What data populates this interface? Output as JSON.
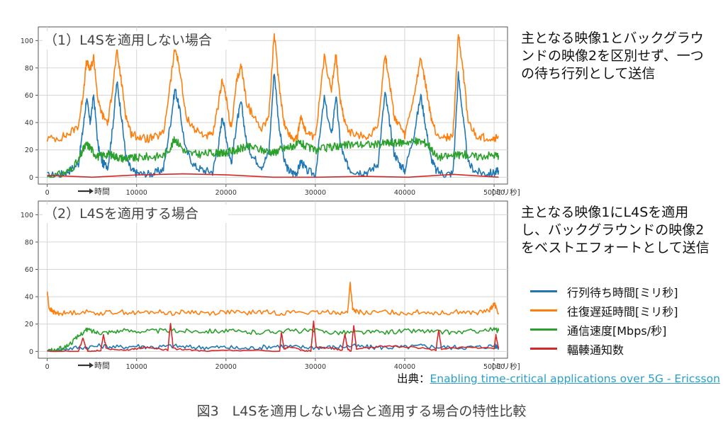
{
  "charts": [
    {
      "panel_title": "（1）L4Sを適用しない場合",
      "side_text": "主となる映像1とバックグラウンドの映像2を区別せず、一つの待ち行列として送信",
      "x_suffix": "[ミリ秒]",
      "x_note": "時間"
    },
    {
      "panel_title": "（2）L4Sを適用する場合",
      "side_text": "主となる映像1にL4Sを適用し、バックグラウンドの映像2をベストエフォートとして送信",
      "x_suffix": "[ミリ秒]",
      "x_note": "時間"
    }
  ],
  "legend": [
    {
      "label": "行列待ち時間[ミリ秒]",
      "color": "#1f77b4"
    },
    {
      "label": "往復遅延時間[ミリ秒]",
      "color": "#ff7f0e"
    },
    {
      "label": "通信速度[Mbps/秒]",
      "color": "#2ca02c"
    },
    {
      "label": "輻輳通知数",
      "color": "#d62728"
    }
  ],
  "source": {
    "prefix": "出典：",
    "link_text": "Enabling time-critical applications over 5G - Ericsson"
  },
  "caption": "図3　L4Sを適用しない場合と適用する場合の特性比較",
  "chart_data": [
    {
      "type": "line",
      "xlim": [
        -1000,
        51500
      ],
      "ylim": [
        -5,
        110
      ],
      "xticks": [
        0,
        10000,
        20000,
        30000,
        40000,
        50000
      ],
      "xtick_labels": [
        "0",
        "10000",
        "20000",
        "30000",
        "40000",
        "50000"
      ],
      "yticks": [
        0,
        20,
        40,
        60,
        80,
        100
      ],
      "ytick_labels": [
        "0",
        "20",
        "40",
        "60",
        "80",
        "100"
      ],
      "grid": true,
      "series": [
        {
          "name": "往復遅延時間[ミリ秒]",
          "color": "#ff7f0e",
          "x": [
            0,
            1500,
            2500,
            3500,
            4000,
            4400,
            4800,
            5200,
            5700,
            6200,
            6800,
            7300,
            7800,
            8300,
            8800,
            9400,
            10000,
            11000,
            12000,
            13000,
            13800,
            14300,
            14800,
            15500,
            16500,
            17500,
            18500,
            19200,
            19600,
            20000,
            20600,
            21200,
            21700,
            22300,
            23000,
            24000,
            24800,
            25400,
            25900,
            26500,
            27000,
            27500,
            28000,
            28400,
            29000,
            30000,
            31000,
            31800,
            32300,
            32800,
            33300,
            34000,
            35000,
            36000,
            37000,
            37800,
            38300,
            38800,
            39400,
            40000,
            41000,
            41800,
            42400,
            42900,
            43500,
            44500,
            45400,
            46000,
            46500,
            47100,
            48000,
            49000,
            50000,
            50500
          ],
          "y": [
            28,
            29,
            32,
            38,
            60,
            85,
            78,
            88,
            55,
            45,
            40,
            65,
            92,
            70,
            45,
            32,
            30,
            28,
            29,
            32,
            70,
            95,
            80,
            45,
            35,
            31,
            30,
            55,
            72,
            58,
            35,
            70,
            82,
            55,
            45,
            36,
            45,
            105,
            70,
            40,
            32,
            28,
            30,
            45,
            32,
            28,
            88,
            65,
            90,
            55,
            40,
            32,
            30,
            30,
            38,
            90,
            70,
            45,
            38,
            30,
            58,
            87,
            65,
            45,
            32,
            29,
            30,
            105,
            80,
            40,
            30,
            29,
            28,
            30
          ]
        },
        {
          "name": "行列待ち時間[ミリ秒]",
          "color": "#1f77b4",
          "x": [
            0,
            1500,
            2500,
            3500,
            4000,
            4400,
            4800,
            5200,
            5700,
            6200,
            6800,
            7300,
            7800,
            8300,
            8800,
            9400,
            10000,
            11000,
            12000,
            13000,
            13800,
            14300,
            14800,
            15500,
            16500,
            17500,
            18500,
            19200,
            19600,
            20000,
            20600,
            21200,
            21700,
            22300,
            23000,
            24000,
            24800,
            25400,
            25900,
            26500,
            27000,
            27500,
            28000,
            28400,
            29000,
            30000,
            31000,
            31800,
            32300,
            32800,
            33300,
            34000,
            35000,
            36000,
            37000,
            37800,
            38300,
            38800,
            39400,
            40000,
            41000,
            41800,
            42400,
            42900,
            43500,
            44500,
            45400,
            46000,
            46500,
            47100,
            48000,
            49000,
            50000,
            50500
          ],
          "y": [
            1,
            2,
            5,
            10,
            35,
            58,
            40,
            60,
            22,
            10,
            8,
            35,
            70,
            45,
            15,
            5,
            3,
            2,
            3,
            6,
            40,
            65,
            50,
            20,
            8,
            5,
            4,
            25,
            45,
            30,
            10,
            40,
            55,
            25,
            15,
            8,
            18,
            78,
            40,
            12,
            5,
            3,
            4,
            12,
            5,
            2,
            58,
            30,
            60,
            25,
            12,
            5,
            4,
            4,
            10,
            62,
            40,
            18,
            10,
            5,
            30,
            60,
            35,
            15,
            5,
            2,
            3,
            75,
            45,
            10,
            4,
            3,
            3,
            5
          ]
        },
        {
          "name": "通信速度[Mbps/秒]",
          "color": "#2ca02c",
          "x": [
            0,
            1500,
            2500,
            3500,
            4000,
            4400,
            4800,
            5200,
            5700,
            6200,
            6800,
            7300,
            7800,
            8300,
            8800,
            9400,
            10000,
            11000,
            12000,
            13000,
            13800,
            14300,
            14800,
            15500,
            16500,
            17500,
            18500,
            19200,
            19600,
            20000,
            20600,
            21200,
            21700,
            22300,
            23000,
            24000,
            24800,
            25400,
            25900,
            26500,
            27000,
            27500,
            28000,
            28400,
            29000,
            30000,
            31000,
            31800,
            32300,
            32800,
            33300,
            34000,
            35000,
            36000,
            37000,
            37800,
            38300,
            38800,
            39400,
            40000,
            41000,
            41800,
            42400,
            42900,
            43500,
            44500,
            45400,
            46000,
            46500,
            47100,
            48000,
            49000,
            50000,
            50500
          ],
          "y": [
            0,
            2,
            5,
            12,
            20,
            24,
            22,
            18,
            15,
            16,
            17,
            16,
            15,
            14,
            14,
            14,
            14,
            15,
            15,
            16,
            22,
            28,
            24,
            18,
            17,
            17,
            18,
            18,
            17,
            18,
            19,
            20,
            21,
            22,
            22,
            20,
            19,
            18,
            20,
            21,
            22,
            23,
            24,
            25,
            22,
            20,
            21,
            22,
            23,
            23,
            23,
            24,
            24,
            24,
            24,
            25,
            25,
            25,
            25,
            26,
            26,
            26,
            25,
            22,
            15,
            15,
            16,
            16,
            17,
            16,
            15,
            16,
            16,
            16
          ]
        },
        {
          "name": "輻輳通知数",
          "color": "#d62728",
          "x": [
            0,
            50500
          ],
          "y": [
            0,
            0
          ]
        }
      ]
    },
    {
      "type": "line",
      "xlim": [
        -1000,
        51500
      ],
      "ylim": [
        -5,
        110
      ],
      "xticks": [
        0,
        10000,
        20000,
        30000,
        40000,
        50000
      ],
      "xtick_labels": [
        "0",
        "10000",
        "20000",
        "30000",
        "40000",
        "50000"
      ],
      "yticks": [
        0,
        20,
        40,
        60,
        80,
        100
      ],
      "ytick_labels": [
        "0",
        "20",
        "40",
        "60",
        "80",
        "100"
      ],
      "grid": true,
      "series": [
        {
          "name": "往復遅延時間[ミリ秒]",
          "color": "#ff7f0e",
          "x": [
            0,
            200,
            600,
            1000,
            2000,
            4000,
            6000,
            8000,
            10000,
            12000,
            14000,
            16000,
            18000,
            20000,
            22000,
            24000,
            26000,
            28000,
            30000,
            32000,
            33600,
            33900,
            34200,
            34600,
            36000,
            38000,
            40000,
            42000,
            44000,
            46000,
            48000,
            49500,
            50000,
            50500
          ],
          "y": [
            44,
            32,
            29,
            28,
            28,
            29,
            28,
            29,
            28,
            29,
            28,
            29,
            28,
            29,
            28,
            29,
            28,
            29,
            28,
            29,
            28,
            50,
            30,
            29,
            28,
            29,
            28,
            29,
            28,
            29,
            28,
            30,
            35,
            28
          ]
        },
        {
          "name": "行列待ち時間[ミリ秒]",
          "color": "#1f77b4",
          "x": [
            0,
            2000,
            4000,
            6000,
            8000,
            10000,
            12000,
            14000,
            16000,
            18000,
            20000,
            22000,
            24000,
            26000,
            28000,
            30000,
            32000,
            34000,
            36000,
            38000,
            40000,
            42000,
            44000,
            46000,
            48000,
            50000,
            50500
          ],
          "y": [
            0,
            2,
            3,
            4,
            3,
            4,
            3,
            4,
            3,
            3,
            3,
            2,
            3,
            4,
            3,
            3,
            3,
            4,
            3,
            3,
            3,
            4,
            3,
            3,
            3,
            4,
            3
          ]
        },
        {
          "name": "通信速度[Mbps/秒]",
          "color": "#2ca02c",
          "x": [
            0,
            1000,
            2000,
            3000,
            4000,
            4500,
            5500,
            6500,
            8000,
            10000,
            12000,
            14000,
            16000,
            18000,
            20000,
            22000,
            24000,
            26000,
            28000,
            30000,
            32000,
            34000,
            36000,
            38000,
            40000,
            42000,
            44000,
            46000,
            48000,
            50000,
            50500
          ],
          "y": [
            0,
            1,
            3,
            8,
            14,
            16,
            14,
            14,
            15,
            15,
            15,
            15,
            15,
            15,
            15,
            14,
            14,
            15,
            15,
            15,
            14,
            14,
            14,
            14,
            15,
            15,
            14,
            14,
            15,
            16,
            15
          ]
        },
        {
          "name": "輻輳通知数",
          "color": "#d62728",
          "x": [
            0,
            3500,
            4000,
            4300,
            4600,
            6000,
            6300,
            6600,
            9000,
            10000,
            11000,
            13500,
            13800,
            14100,
            16000,
            18000,
            22000,
            26000,
            26200,
            26500,
            27000,
            28500,
            29500,
            29800,
            30100,
            32000,
            33000,
            33300,
            33600,
            34000,
            34300,
            34600,
            38000,
            41000,
            43500,
            43800,
            44100,
            47000,
            50000,
            50200,
            50500
          ],
          "y": [
            0,
            0,
            10,
            3,
            0,
            1,
            12,
            2,
            1,
            2,
            3,
            1,
            21,
            2,
            1,
            0,
            1,
            0,
            14,
            2,
            3,
            1,
            0,
            22,
            3,
            2,
            1,
            13,
            2,
            0,
            19,
            2,
            4,
            3,
            1,
            16,
            2,
            3,
            2,
            12,
            2
          ]
        }
      ]
    }
  ]
}
